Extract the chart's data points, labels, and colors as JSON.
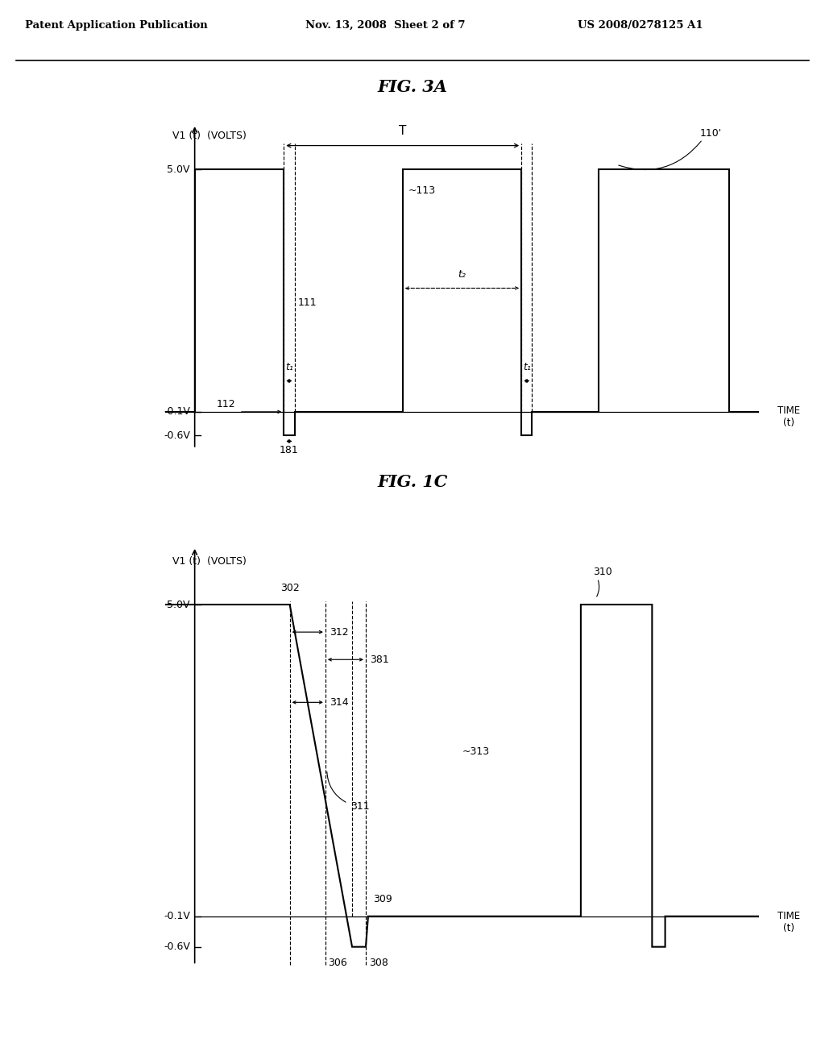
{
  "background_color": "#ffffff",
  "header_left": "Patent Application Publication",
  "header_mid": "Nov. 13, 2008  Sheet 2 of 7",
  "header_right": "US 2008/0278125 A1",
  "fig1c_title": "FIG. 1C",
  "fig3a_title": "FIG. 3A",
  "ylabel_label": "V1 (t)  (VOLTS)",
  "xlabel_label": "TIME\n(t)",
  "yvals": [
    5.0,
    -0.1,
    -0.6
  ],
  "ytick_labels": [
    "5.0V",
    "-0.1V",
    "-0.6V"
  ],
  "fig1c": {
    "label_110": "110'",
    "label_111": "111",
    "label_112": "112",
    "label_113": "~113",
    "label_181": "181",
    "label_T": "T",
    "label_t1": "t₁",
    "label_t2": "t₂"
  },
  "fig3a": {
    "label_302": "302",
    "label_306": "306",
    "label_308": "308",
    "label_309": "309",
    "label_310": "310",
    "label_311": "311",
    "label_312": "312",
    "label_313": "~313",
    "label_314": "314",
    "label_381": "381"
  }
}
